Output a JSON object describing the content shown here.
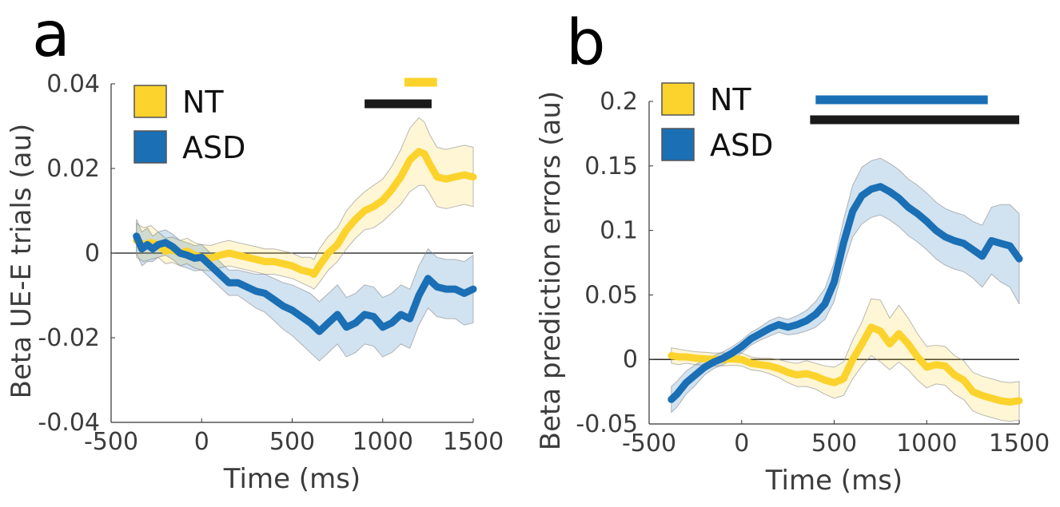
{
  "chart_data": [
    {
      "panel": "a",
      "type": "line",
      "xlabel": "Time (ms)",
      "ylabel": "Beta  UE-E trials (au)",
      "xlim": [
        -500,
        1500
      ],
      "ylim": [
        -0.04,
        0.04
      ],
      "xticks": [
        -500,
        0,
        500,
        1000,
        1500
      ],
      "yticks": [
        -0.04,
        -0.02,
        0,
        0.02,
        0.04
      ],
      "xtick_labels": [
        "-500",
        "0",
        "500",
        "1000",
        "1500"
      ],
      "ytick_labels": [
        "-0.04",
        "-0.02",
        "0",
        "0.02",
        "0.04"
      ],
      "zero_line": true,
      "legend_position": "top-left",
      "series": [
        {
          "name": "NT",
          "color": "#fcd32c",
          "x": [
            -360,
            -320,
            -280,
            -240,
            -200,
            -160,
            -120,
            -80,
            -40,
            0,
            50,
            100,
            150,
            200,
            250,
            300,
            350,
            400,
            450,
            500,
            550,
            600,
            620,
            650,
            700,
            750,
            800,
            850,
            900,
            950,
            1000,
            1050,
            1100,
            1150,
            1200,
            1230,
            1260,
            1300,
            1350,
            1400,
            1450,
            1500
          ],
          "y": [
            0.003,
            0.002,
            0.0025,
            0.002,
            0.0005,
            0.0008,
            0.0,
            0.0005,
            -0.0005,
            -0.001,
            -0.0012,
            -0.0005,
            0.0,
            -0.0005,
            -0.001,
            -0.0015,
            -0.002,
            -0.002,
            -0.0025,
            -0.003,
            -0.004,
            -0.0045,
            -0.005,
            -0.003,
            0.0,
            0.002,
            0.0055,
            0.008,
            0.01,
            0.011,
            0.0125,
            0.015,
            0.018,
            0.022,
            0.024,
            0.0235,
            0.021,
            0.018,
            0.0175,
            0.018,
            0.0185,
            0.018
          ],
          "ci": [
            0.004,
            0.004,
            0.004,
            0.003,
            0.003,
            0.003,
            0.003,
            0.003,
            0.003,
            0.003,
            0.003,
            0.003,
            0.003,
            0.003,
            0.003,
            0.003,
            0.003,
            0.003,
            0.003,
            0.003,
            0.003,
            0.0035,
            0.0035,
            0.004,
            0.004,
            0.004,
            0.0045,
            0.0045,
            0.0045,
            0.005,
            0.005,
            0.0055,
            0.0065,
            0.0075,
            0.008,
            0.0075,
            0.007,
            0.007,
            0.007,
            0.007,
            0.007,
            0.007
          ]
        },
        {
          "name": "ASD",
          "color": "#1a6fb5",
          "x": [
            -360,
            -330,
            -300,
            -270,
            -240,
            -200,
            -160,
            -120,
            -80,
            -40,
            0,
            50,
            100,
            150,
            200,
            250,
            300,
            350,
            400,
            450,
            500,
            550,
            600,
            650,
            700,
            750,
            800,
            850,
            900,
            950,
            1000,
            1050,
            1100,
            1150,
            1200,
            1250,
            1300,
            1350,
            1400,
            1450,
            1500
          ],
          "y": [
            0.004,
            0.001,
            0.002,
            0.001,
            0.002,
            0.0025,
            0.0015,
            0.0,
            -0.0005,
            -0.0012,
            -0.001,
            -0.003,
            -0.005,
            -0.007,
            -0.007,
            -0.008,
            -0.009,
            -0.0095,
            -0.011,
            -0.0125,
            -0.0135,
            -0.015,
            -0.0165,
            -0.0185,
            -0.0165,
            -0.0145,
            -0.0175,
            -0.0165,
            -0.0145,
            -0.015,
            -0.0175,
            -0.0165,
            -0.0145,
            -0.0155,
            -0.01,
            -0.006,
            -0.008,
            -0.0085,
            -0.0085,
            -0.0095,
            -0.0085
          ],
          "ci": [
            0.004,
            0.004,
            0.004,
            0.003,
            0.003,
            0.003,
            0.003,
            0.003,
            0.003,
            0.003,
            0.003,
            0.003,
            0.003,
            0.003,
            0.003,
            0.0035,
            0.004,
            0.0045,
            0.005,
            0.0055,
            0.006,
            0.0065,
            0.007,
            0.007,
            0.007,
            0.007,
            0.007,
            0.007,
            0.007,
            0.007,
            0.007,
            0.007,
            0.007,
            0.007,
            0.007,
            0.007,
            0.007,
            0.007,
            0.007,
            0.0075,
            0.008
          ]
        }
      ],
      "significance_bars": [
        {
          "color": "#fcd32c",
          "x_range": [
            1120,
            1300
          ]
        },
        {
          "color": "#1a1a1a",
          "x_range": [
            900,
            1270
          ]
        }
      ]
    },
    {
      "panel": "b",
      "type": "line",
      "xlabel": "Time (ms)",
      "ylabel": "Beta prediction errors (au)",
      "xlim": [
        -500,
        1500
      ],
      "ylim": [
        -0.05,
        0.2
      ],
      "xticks": [
        -500,
        0,
        500,
        1000,
        1500
      ],
      "yticks": [
        -0.05,
        0,
        0.05,
        0.1,
        0.15,
        0.2
      ],
      "xtick_labels": [
        "-500",
        "0",
        "500",
        "1000",
        "1500"
      ],
      "ytick_labels": [
        "-0.05",
        "0",
        "0.05",
        "0.1",
        "0.15",
        "0.2"
      ],
      "zero_line": true,
      "legend_position": "top-left",
      "series": [
        {
          "name": "NT",
          "color": "#fcd32c",
          "x": [
            -380,
            -340,
            -300,
            -250,
            -200,
            -150,
            -100,
            -50,
            0,
            50,
            100,
            150,
            200,
            250,
            300,
            350,
            400,
            450,
            500,
            550,
            600,
            650,
            700,
            750,
            800,
            850,
            900,
            950,
            1000,
            1050,
            1100,
            1150,
            1200,
            1250,
            1300,
            1350,
            1400,
            1450,
            1500
          ],
          "y": [
            0.003,
            0.002,
            0.002,
            0.001,
            0.0005,
            0.0,
            0.0,
            0.0005,
            0.0,
            -0.003,
            -0.004,
            -0.005,
            -0.007,
            -0.01,
            -0.012,
            -0.011,
            -0.013,
            -0.016,
            -0.018,
            -0.015,
            0.0,
            0.012,
            0.025,
            0.022,
            0.012,
            0.02,
            0.012,
            0.002,
            -0.006,
            -0.004,
            -0.005,
            -0.012,
            -0.016,
            -0.025,
            -0.028,
            -0.03,
            -0.032,
            -0.033,
            -0.032
          ],
          "ci": [
            0.006,
            0.006,
            0.005,
            0.005,
            0.005,
            0.005,
            0.005,
            0.005,
            0.005,
            0.005,
            0.005,
            0.006,
            0.007,
            0.008,
            0.009,
            0.01,
            0.01,
            0.011,
            0.012,
            0.013,
            0.015,
            0.017,
            0.022,
            0.024,
            0.02,
            0.022,
            0.02,
            0.018,
            0.016,
            0.015,
            0.015,
            0.015,
            0.015,
            0.015,
            0.015,
            0.015,
            0.015,
            0.015,
            0.015
          ]
        },
        {
          "name": "ASD",
          "color": "#1a6fb5",
          "x": [
            -380,
            -350,
            -300,
            -250,
            -200,
            -150,
            -100,
            -50,
            0,
            50,
            100,
            150,
            200,
            250,
            300,
            350,
            400,
            450,
            500,
            550,
            600,
            650,
            700,
            750,
            800,
            850,
            900,
            950,
            1000,
            1050,
            1100,
            1150,
            1200,
            1250,
            1300,
            1350,
            1400,
            1450,
            1500
          ],
          "y": [
            -0.031,
            -0.027,
            -0.018,
            -0.012,
            -0.006,
            -0.002,
            0.001,
            0.005,
            0.01,
            0.016,
            0.02,
            0.024,
            0.027,
            0.025,
            0.027,
            0.03,
            0.035,
            0.043,
            0.06,
            0.09,
            0.115,
            0.127,
            0.132,
            0.134,
            0.13,
            0.125,
            0.118,
            0.113,
            0.107,
            0.1,
            0.095,
            0.092,
            0.09,
            0.085,
            0.08,
            0.092,
            0.09,
            0.088,
            0.078
          ],
          "ci": [
            0.01,
            0.01,
            0.009,
            0.008,
            0.006,
            0.005,
            0.005,
            0.005,
            0.005,
            0.005,
            0.005,
            0.006,
            0.006,
            0.006,
            0.007,
            0.008,
            0.01,
            0.012,
            0.015,
            0.018,
            0.02,
            0.022,
            0.022,
            0.022,
            0.022,
            0.022,
            0.022,
            0.022,
            0.022,
            0.022,
            0.022,
            0.022,
            0.022,
            0.022,
            0.024,
            0.026,
            0.03,
            0.032,
            0.035
          ]
        }
      ],
      "significance_bars": [
        {
          "color": "#1a6fb5",
          "x_range": [
            400,
            1330
          ]
        },
        {
          "color": "#1a1a1a",
          "x_range": [
            370,
            1500
          ]
        }
      ]
    }
  ]
}
